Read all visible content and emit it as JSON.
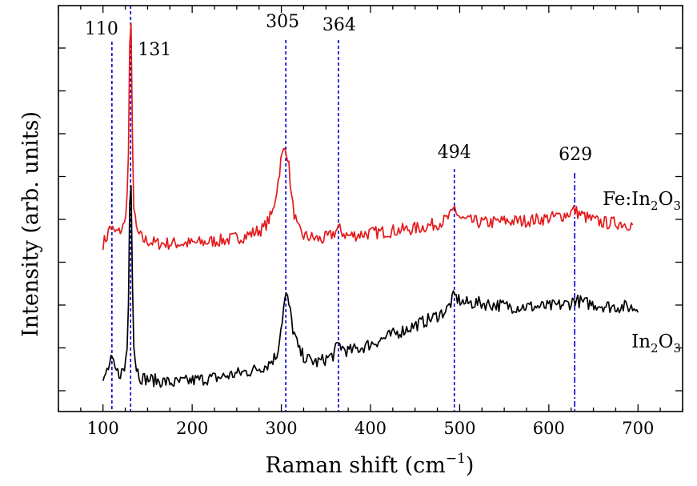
{
  "chart_data": {
    "type": "line",
    "title": "",
    "xlabel": "Raman shift (cm",
    "xlabel_sup": "−1",
    "xlabel_suffix": ")",
    "ylabel": "Intensity (arb. units)",
    "xlim": [
      50,
      750
    ],
    "ylim": [
      0,
      1
    ],
    "x_ticks": [
      100,
      200,
      300,
      400,
      500,
      600,
      700
    ],
    "y_tick_labels_shown": false,
    "grid": false,
    "peak_markers": [
      {
        "x": 110,
        "label": "110",
        "style": "dotted"
      },
      {
        "x": 131,
        "label": "131",
        "style": "dotted"
      },
      {
        "x": 305,
        "label": "305",
        "style": "dotted"
      },
      {
        "x": 364,
        "label": "364",
        "style": "dotted"
      },
      {
        "x": 494,
        "label": "494",
        "style": "dotted"
      },
      {
        "x": 629,
        "label": "629",
        "style": "dashdot"
      }
    ],
    "series": [
      {
        "name_parts": [
          "Fe:In",
          "2",
          "O",
          "3"
        ],
        "color": "#e41a1c",
        "x": [
          100,
          105,
          108,
          112,
          118,
          124,
          128,
          130,
          131,
          132,
          134,
          138,
          145,
          160,
          180,
          200,
          220,
          240,
          260,
          280,
          290,
          296,
          300,
          303,
          305,
          308,
          312,
          318,
          325,
          335,
          345,
          355,
          360,
          364,
          368,
          375,
          390,
          410,
          430,
          450,
          470,
          482,
          488,
          492,
          494,
          497,
          502,
          510,
          530,
          550,
          570,
          590,
          605,
          615,
          622,
          628,
          634,
          642,
          652,
          665,
          680,
          695
        ],
        "y": [
          0.4,
          0.42,
          0.45,
          0.43,
          0.43,
          0.45,
          0.55,
          0.92,
          1.06,
          0.9,
          0.5,
          0.43,
          0.41,
          0.4,
          0.4,
          0.4,
          0.405,
          0.41,
          0.42,
          0.44,
          0.48,
          0.56,
          0.63,
          0.65,
          0.66,
          0.62,
          0.51,
          0.44,
          0.42,
          0.415,
          0.41,
          0.42,
          0.43,
          0.44,
          0.43,
          0.42,
          0.425,
          0.43,
          0.435,
          0.44,
          0.45,
          0.46,
          0.47,
          0.48,
          0.5,
          0.48,
          0.465,
          0.46,
          0.455,
          0.46,
          0.46,
          0.465,
          0.47,
          0.475,
          0.48,
          0.49,
          0.48,
          0.47,
          0.46,
          0.455,
          0.455,
          0.45
        ]
      },
      {
        "name_parts": [
          "In",
          "2",
          "O",
          "3"
        ],
        "color": "#000000",
        "x": [
          100,
          103,
          107,
          110,
          113,
          118,
          124,
          128,
          130,
          131,
          132,
          134,
          137,
          142,
          150,
          165,
          180,
          195,
          210,
          230,
          250,
          270,
          285,
          295,
          300,
          304,
          306,
          309,
          313,
          320,
          328,
          340,
          350,
          358,
          362,
          365,
          368,
          375,
          390,
          410,
          430,
          450,
          470,
          485,
          490,
          494,
          498,
          505,
          520,
          540,
          560,
          580,
          600,
          615,
          625,
          629,
          633,
          640,
          655,
          670,
          685,
          700
        ],
        "y": [
          0.02,
          0.05,
          0.07,
          0.09,
          0.06,
          0.05,
          0.06,
          0.14,
          0.52,
          0.66,
          0.48,
          0.14,
          0.07,
          0.04,
          0.035,
          0.03,
          0.025,
          0.03,
          0.035,
          0.04,
          0.05,
          0.06,
          0.075,
          0.1,
          0.18,
          0.25,
          0.26,
          0.23,
          0.17,
          0.11,
          0.09,
          0.08,
          0.09,
          0.1,
          0.12,
          0.13,
          0.12,
          0.11,
          0.12,
          0.14,
          0.16,
          0.18,
          0.2,
          0.22,
          0.24,
          0.26,
          0.25,
          0.24,
          0.24,
          0.235,
          0.23,
          0.23,
          0.23,
          0.235,
          0.24,
          0.25,
          0.245,
          0.24,
          0.235,
          0.23,
          0.23,
          0.225
        ]
      }
    ]
  }
}
